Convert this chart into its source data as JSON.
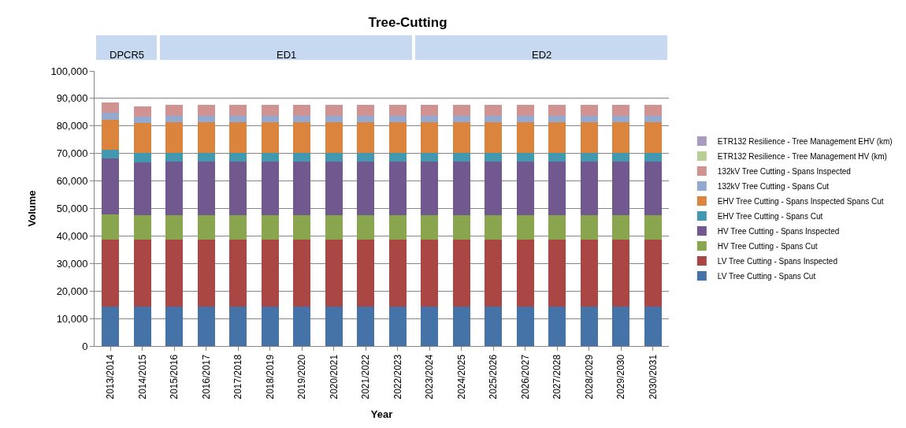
{
  "chart_data": {
    "type": "bar",
    "stacked": true,
    "title": "Tree-Cutting",
    "xlabel": "Year",
    "ylabel": "Volume",
    "categories": [
      "2013/2014",
      "2014/2015",
      "2015/2016",
      "2016/2017",
      "2017/2018",
      "2018/2019",
      "2019/2020",
      "2020/2021",
      "2021/2022",
      "2022/2023",
      "2023/2024",
      "2024/2025",
      "2025/2026",
      "2026/2027",
      "2027/2028",
      "2028/2029",
      "2029/2030",
      "2030/2031"
    ],
    "series": [
      {
        "name": "LV Tree Cutting - Spans Cut",
        "color": "#4572a7",
        "values": [
          14400,
          14400,
          14400,
          14400,
          14400,
          14400,
          14400,
          14400,
          14400,
          14400,
          14400,
          14400,
          14400,
          14400,
          14400,
          14400,
          14400,
          14400
        ]
      },
      {
        "name": "LV Tree Cutting - Spans Inspected",
        "color": "#aa4643",
        "values": [
          24300,
          24300,
          24300,
          24300,
          24300,
          24300,
          24300,
          24300,
          24300,
          24300,
          24300,
          24300,
          24300,
          24300,
          24300,
          24300,
          24300,
          24300
        ]
      },
      {
        "name": "HV Tree Cutting - Spans Cut",
        "color": "#89a54e",
        "values": [
          9100,
          8900,
          8900,
          8900,
          8900,
          8900,
          8900,
          8900,
          8900,
          8900,
          8900,
          8900,
          8900,
          8900,
          8900,
          8900,
          8900,
          8900
        ]
      },
      {
        "name": "HV Tree Cutting - Spans Inspected",
        "color": "#71588f",
        "values": [
          20300,
          19200,
          19500,
          19500,
          19500,
          19500,
          19500,
          19500,
          19500,
          19500,
          19500,
          19500,
          19500,
          19500,
          19500,
          19500,
          19500,
          19500
        ]
      },
      {
        "name": "EHV Tree Cutting - Spans Cut",
        "color": "#4198af",
        "values": [
          3300,
          3300,
          3200,
          3200,
          3200,
          3200,
          3200,
          3200,
          3200,
          3200,
          3200,
          3200,
          3200,
          3200,
          3200,
          3200,
          3200,
          3200
        ]
      },
      {
        "name": "EHV Tree Cutting - Spans Inspected Spans Cut",
        "color": "#db843d",
        "values": [
          10900,
          11100,
          11200,
          11200,
          11200,
          11200,
          11200,
          11200,
          11200,
          11200,
          11200,
          11200,
          11200,
          11200,
          11200,
          11200,
          11200,
          11200
        ]
      },
      {
        "name": "132kV Tree Cutting - Spans Cut",
        "color": "#93a9cf",
        "values": [
          2400,
          2300,
          2200,
          2200,
          2200,
          2200,
          2200,
          2200,
          2200,
          2200,
          2200,
          2200,
          2200,
          2200,
          2200,
          2200,
          2200,
          2200
        ]
      },
      {
        "name": "132kV Tree Cutting - Spans Inspected",
        "color": "#d19392",
        "values": [
          3800,
          3700,
          3900,
          3900,
          3900,
          3900,
          3900,
          3900,
          3900,
          3900,
          3900,
          3900,
          3900,
          3900,
          3900,
          3900,
          3900,
          3900
        ]
      },
      {
        "name": "ETR132 Resilience - Tree Management HV (km)",
        "color": "#b9cd96",
        "values": [
          0,
          0,
          0,
          0,
          0,
          0,
          0,
          0,
          0,
          0,
          0,
          0,
          0,
          0,
          0,
          0,
          0,
          0
        ]
      },
      {
        "name": "ETR132 Resilience - Tree Management EHV (km)",
        "color": "#a99bbd",
        "values": [
          0,
          0,
          0,
          0,
          0,
          0,
          0,
          0,
          0,
          0,
          0,
          0,
          0,
          0,
          0,
          0,
          0,
          0
        ]
      }
    ],
    "ylim": [
      0,
      100000
    ],
    "yticks": [
      {
        "value": 0,
        "label": "0"
      },
      {
        "value": 10000,
        "label": "10,000"
      },
      {
        "value": 20000,
        "label": "20,000"
      },
      {
        "value": 30000,
        "label": "30,000"
      },
      {
        "value": 40000,
        "label": "40,000"
      },
      {
        "value": 50000,
        "label": "50,000"
      },
      {
        "value": 60000,
        "label": "60,000"
      },
      {
        "value": 70000,
        "label": "70,000"
      },
      {
        "value": 80000,
        "label": "80,000"
      },
      {
        "value": 90000,
        "label": "90,000"
      },
      {
        "value": 100000,
        "label": "100,000"
      }
    ],
    "annotations": [
      "DPCR5",
      "ED1",
      "ED2"
    ],
    "grid": "y",
    "legend": "right"
  }
}
